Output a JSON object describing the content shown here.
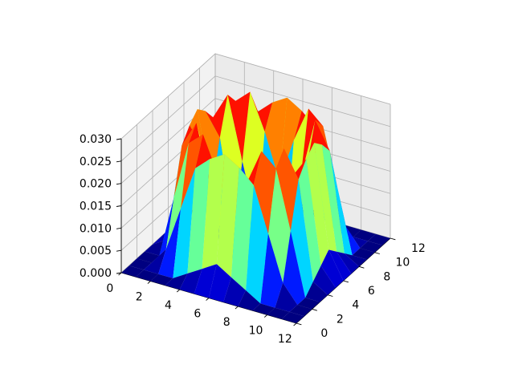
{
  "chart_data": {
    "type": "surface3d",
    "title": "",
    "xlabel": "",
    "ylabel": "",
    "zlabel": "",
    "grid": true,
    "colormap": "jet",
    "x_range": [
      0,
      12
    ],
    "y_range": [
      0,
      12
    ],
    "z_range": [
      0,
      0.03
    ],
    "x_ticks": [
      "0",
      "2",
      "4",
      "6",
      "8",
      "10",
      "12"
    ],
    "y_ticks": [
      "0",
      "2",
      "4",
      "6",
      "8",
      "10",
      "12"
    ],
    "z_ticks": [
      "0.000",
      "0.005",
      "0.010",
      "0.015",
      "0.020",
      "0.025",
      "0.030"
    ],
    "x": [
      0,
      1,
      2,
      3,
      4,
      5,
      6,
      7,
      8,
      9,
      10,
      11,
      12
    ],
    "y": [
      0,
      1,
      2,
      3,
      4,
      5,
      6,
      7,
      8,
      9,
      10,
      11,
      12
    ],
    "z": [
      [
        0,
        0,
        0,
        0,
        0,
        0,
        0,
        0,
        0,
        0,
        0,
        0,
        0
      ],
      [
        0,
        0,
        0,
        0,
        0.002,
        0.004,
        0.006,
        0.004,
        0.002,
        0,
        0,
        0,
        0
      ],
      [
        0,
        0,
        0.004,
        0.014,
        0.024,
        0.027,
        0.029,
        0.027,
        0.024,
        0.014,
        0.004,
        0,
        0
      ],
      [
        0,
        0,
        0.014,
        0.027,
        0.03,
        0.022,
        0.012,
        0.022,
        0.03,
        0.027,
        0.014,
        0,
        0
      ],
      [
        0,
        0.002,
        0.024,
        0.03,
        0.016,
        0.003,
        0.001,
        0.003,
        0.016,
        0.03,
        0.024,
        0.002,
        0
      ],
      [
        0,
        0.004,
        0.027,
        0.022,
        0.003,
        0.001,
        0,
        0.001,
        0.003,
        0.022,
        0.027,
        0.004,
        0
      ],
      [
        0,
        0.006,
        0.029,
        0.012,
        0.001,
        0,
        0,
        0,
        0.001,
        0.012,
        0.029,
        0.006,
        0
      ],
      [
        0,
        0.004,
        0.027,
        0.022,
        0.003,
        0.001,
        0,
        0.001,
        0.003,
        0.022,
        0.027,
        0.004,
        0
      ],
      [
        0,
        0.002,
        0.024,
        0.03,
        0.016,
        0.003,
        0.001,
        0.003,
        0.016,
        0.03,
        0.024,
        0.002,
        0
      ],
      [
        0,
        0,
        0.014,
        0.027,
        0.03,
        0.022,
        0.012,
        0.022,
        0.03,
        0.027,
        0.014,
        0,
        0
      ],
      [
        0,
        0,
        0.004,
        0.014,
        0.024,
        0.027,
        0.029,
        0.027,
        0.024,
        0.014,
        0.004,
        0,
        0
      ],
      [
        0,
        0,
        0,
        0,
        0.002,
        0.004,
        0.006,
        0.004,
        0.002,
        0,
        0,
        0,
        0
      ],
      [
        0,
        0,
        0,
        0,
        0,
        0,
        0,
        0,
        0,
        0,
        0,
        0,
        0
      ]
    ]
  }
}
